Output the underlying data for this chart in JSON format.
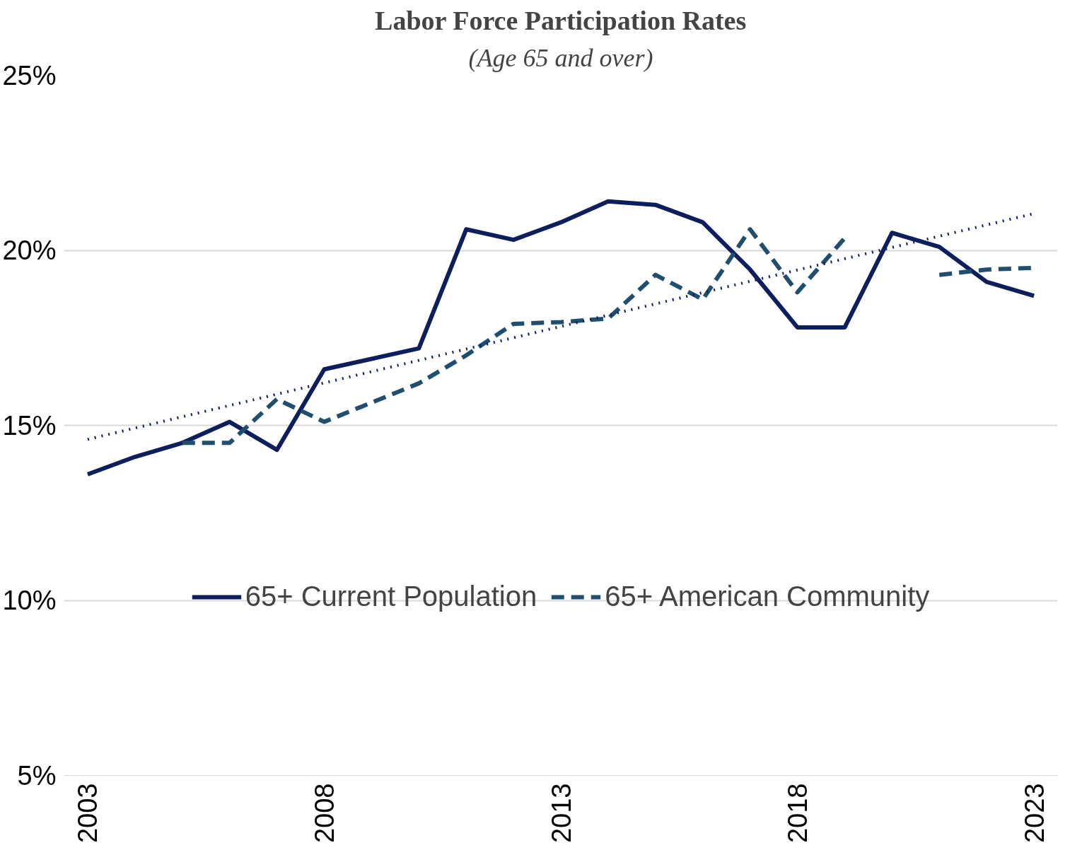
{
  "chart_data": {
    "type": "line",
    "title": "Labor Force Participation Rates",
    "subtitle": "(Age 65 and over)",
    "x": [
      2003,
      2004,
      2005,
      2006,
      2007,
      2008,
      2009,
      2010,
      2011,
      2012,
      2013,
      2014,
      2015,
      2016,
      2017,
      2018,
      2019,
      2020,
      2021,
      2022,
      2023
    ],
    "series": [
      {
        "name": "65+ Current Population",
        "color": "#0c1f5c",
        "line_style": "solid",
        "values": [
          13.6,
          14.1,
          14.5,
          15.1,
          14.3,
          16.6,
          16.9,
          17.2,
          20.6,
          20.3,
          20.8,
          21.4,
          21.3,
          20.8,
          19.45,
          17.8,
          17.8,
          20.5,
          20.1,
          19.1,
          18.7
        ]
      },
      {
        "name": "65+ American Community",
        "color": "#1f4e6e",
        "line_style": "dashed",
        "values": [
          null,
          null,
          14.5,
          14.5,
          15.75,
          15.1,
          15.65,
          16.2,
          17.0,
          17.9,
          17.95,
          18.05,
          19.3,
          18.6,
          20.6,
          18.8,
          20.35,
          null,
          19.3,
          19.45,
          19.5
        ]
      },
      {
        "color": "#0c1f5c",
        "line_style": "dotted",
        "x": [
          2003,
          2023
        ],
        "values": [
          14.6,
          21.05
        ]
      }
    ],
    "xlim": [
      2002.5,
      2023.5
    ],
    "xticks": [
      2003,
      2008,
      2013,
      2018,
      2023
    ],
    "ylim": [
      5,
      25
    ],
    "yticks": [
      {
        "value": 5,
        "label": "5%"
      },
      {
        "value": 10,
        "label": "10%"
      },
      {
        "value": 15,
        "label": "15%"
      },
      {
        "value": 20,
        "label": "20%"
      },
      {
        "value": 25,
        "label": "25%"
      }
    ],
    "grid": "y",
    "legend": "bottom",
    "marker": "none"
  }
}
